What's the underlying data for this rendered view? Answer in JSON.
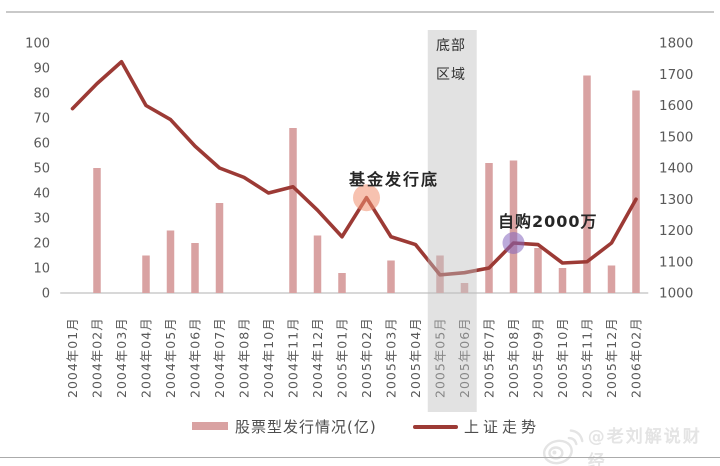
{
  "watermark": {
    "handle": "@老刘解说财经",
    "icon": "weibo-icon"
  },
  "legend": {
    "bar_label": "股票型发行情况(亿)",
    "line_label": "上证走势"
  },
  "chart_data": {
    "type": "bar+line combo",
    "categories": [
      "2004年01月",
      "2004年02月",
      "2004年03月",
      "2004年04月",
      "2004年05月",
      "2004年06月",
      "2004年07月",
      "2004年08月",
      "2004年10月",
      "2004年11月",
      "2004年12月",
      "2005年01月",
      "2005年02月",
      "2005年03月",
      "2005年04月",
      "2005年05月",
      "2005年06月",
      "2005年07月",
      "2005年08月",
      "2005年09月",
      "2005年10月",
      "2005年11月",
      "2005年12月",
      "2006年02月"
    ],
    "series": [
      {
        "name": "股票型发行情况(亿)",
        "type": "bar",
        "axis": "left",
        "values": [
          0,
          50,
          0,
          15,
          25,
          20,
          36,
          0,
          0,
          66,
          23,
          8,
          0,
          13,
          0,
          15,
          4,
          52,
          53,
          18,
          10,
          87,
          11,
          81
        ]
      },
      {
        "name": "上证走势",
        "type": "line",
        "axis": "right",
        "values": [
          1590,
          1670,
          1740,
          1600,
          1555,
          1470,
          1400,
          1370,
          1320,
          1340,
          1265,
          1180,
          1305,
          1180,
          1155,
          1058,
          1065,
          1080,
          1160,
          1155,
          1096,
          1100,
          1160,
          1300
        ]
      }
    ],
    "left_axis": {
      "min": 0,
      "max": 100,
      "step": 10,
      "ticks": [
        0,
        10,
        20,
        30,
        40,
        50,
        60,
        70,
        80,
        90,
        100
      ]
    },
    "right_axis": {
      "min": 1000,
      "max": 1800,
      "step": 100,
      "ticks": [
        1000,
        1100,
        1200,
        1300,
        1400,
        1500,
        1600,
        1700,
        1800
      ]
    },
    "grid": "off",
    "legend_position": "bottom",
    "annotations": {
      "band": {
        "label_line1": "底部",
        "label_line2": "区域",
        "from": "2005年05月",
        "to": "2005年06月",
        "color": "#bebebe"
      },
      "fund_bottom": {
        "text": "基金发行底",
        "category": "2005年02月",
        "marker_color": "#f09070"
      },
      "self_purchase": {
        "text": "自购2000万",
        "category": "2005年08月",
        "marker_color": "#8566bd"
      }
    },
    "colors": {
      "bar": "#d9a2a2",
      "line": "#9c3a35",
      "tick_text": "#595959",
      "axis_line": "#c0c0c0"
    }
  }
}
